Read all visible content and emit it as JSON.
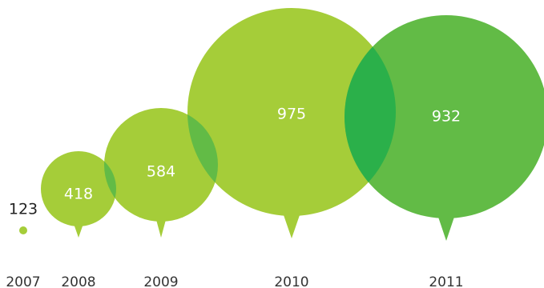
{
  "chart_data": {
    "type": "bubble",
    "title": "",
    "xlabel": "",
    "ylabel": "",
    "categories": [
      "2007",
      "2008",
      "2009",
      "2010",
      "2011"
    ],
    "values": [
      123,
      418,
      584,
      975,
      932
    ],
    "value_labels": [
      "123",
      "418",
      "584",
      "975",
      "932"
    ],
    "grid": false,
    "legend": "none",
    "colors": {
      "light_green": "#a5cd39",
      "dark_green": "#62bb46",
      "overlap_light": "#62bb46",
      "overlap_dark": "#2bb04a"
    },
    "bubble_colors": [
      "light_green",
      "light_green",
      "light_green",
      "light_green",
      "dark_green"
    ]
  }
}
